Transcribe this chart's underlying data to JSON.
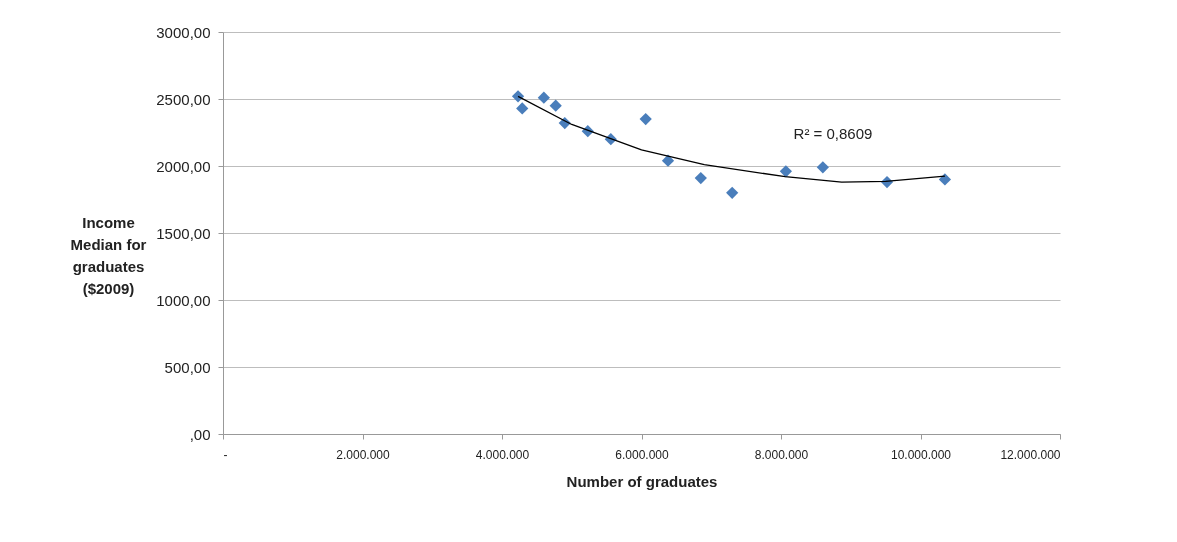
{
  "chart_data": {
    "type": "scatter",
    "xlabel": "Number of graduates",
    "ylabel": "Income Median for graduates ($2009)",
    "xlim": [
      0,
      12000000
    ],
    "xticks": [
      {
        "value": 0,
        "label": "-"
      },
      {
        "value": 2000000,
        "label": "2.000.000"
      },
      {
        "value": 4000000,
        "label": "4.000.000"
      },
      {
        "value": 6000000,
        "label": "6.000.000"
      },
      {
        "value": 8000000,
        "label": "8.000.000"
      },
      {
        "value": 10000000,
        "label": "10.000.000"
      },
      {
        "value": 12000000,
        "label": "12.000.000"
      }
    ],
    "ylim": [
      0,
      3000
    ],
    "yticks": [
      {
        "value": 0,
        "label": ",00"
      },
      {
        "value": 500,
        "label": "500,00"
      },
      {
        "value": 1000,
        "label": "1000,00"
      },
      {
        "value": 1500,
        "label": "1500,00"
      },
      {
        "value": 2000,
        "label": "2000,00"
      },
      {
        "value": 2500,
        "label": "2500,00"
      },
      {
        "value": 3000,
        "label": "3000,00"
      }
    ],
    "grid": "y",
    "marker": "diamond",
    "series": [
      {
        "color": "#4a7ebb",
        "x": [
          4230000,
          4290000,
          4600000,
          4770000,
          4900000,
          5230000,
          5560000,
          6060000,
          6380000,
          6850000,
          7300000,
          8070000,
          8600000,
          9520000,
          10350000
        ],
        "values": [
          2520,
          2430,
          2510,
          2450,
          2320,
          2260,
          2200,
          2350,
          2040,
          1910,
          1800,
          1960,
          1990,
          1880,
          1900
        ]
      },
      {
        "type": "line",
        "color": "#000000",
        "line_style": "solid",
        "marker": "none",
        "x": [
          4230000,
          5000000,
          6000000,
          6900000,
          8060000,
          8870000,
          9500000,
          10350000
        ],
        "values": [
          2520,
          2310,
          2120,
          2010,
          1920,
          1880,
          1885,
          1925
        ]
      }
    ],
    "annotations": [
      "R² = 0,8609"
    ]
  }
}
